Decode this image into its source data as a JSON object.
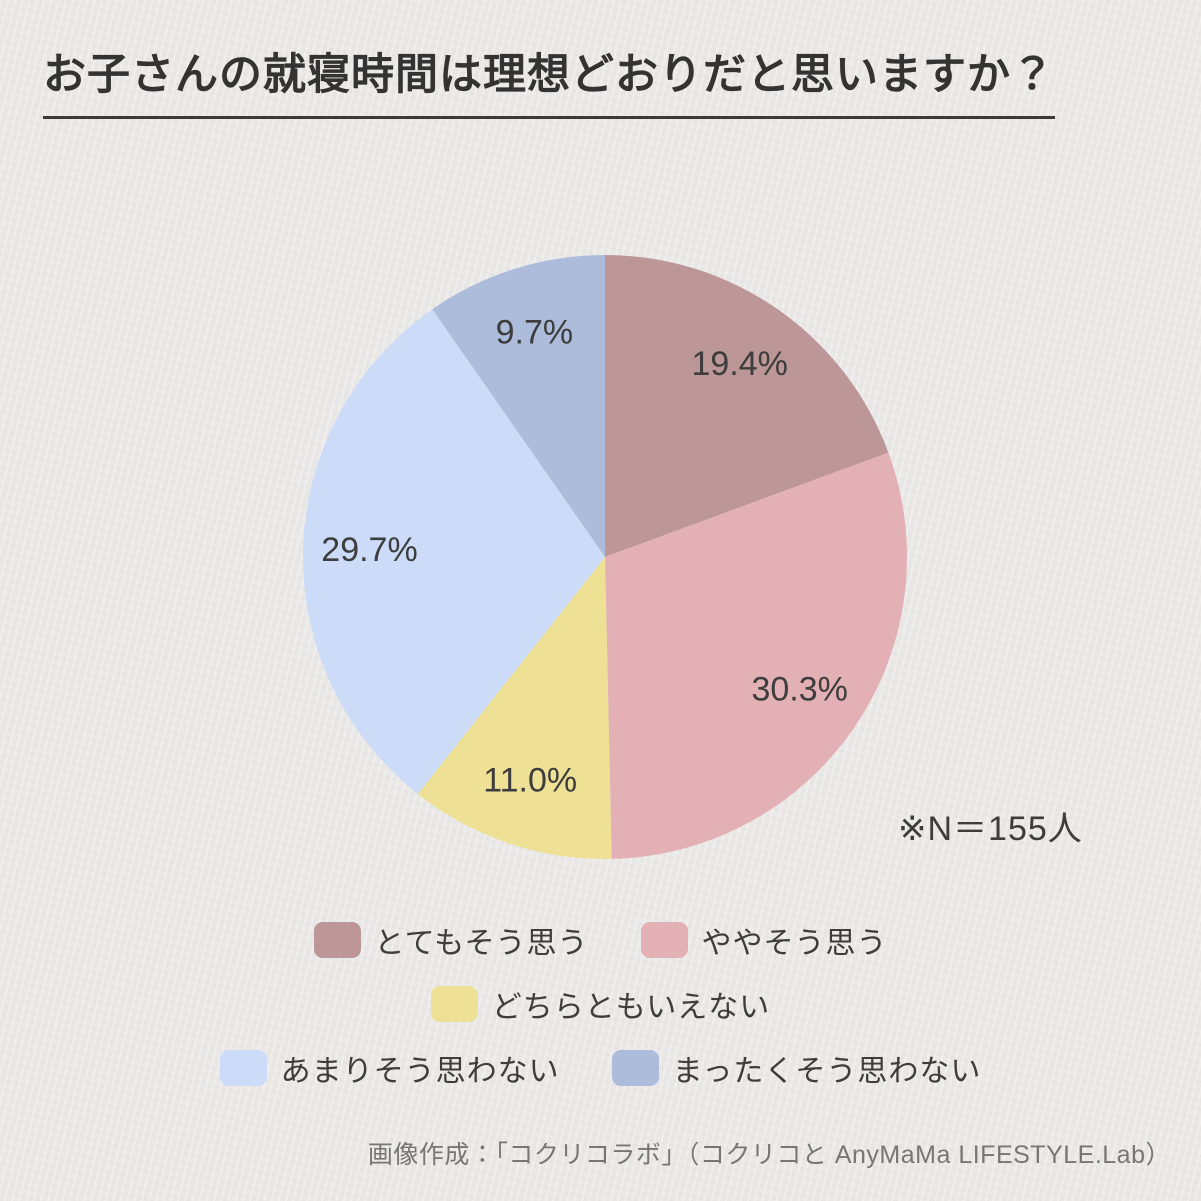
{
  "title": "お子さんの就寝時間は理想どおりだと思いますか？",
  "sample_note": "※N＝155人",
  "credit": "画像作成：「コクリコラボ」（コクリコと AnyMaMa LIFESTYLE.Lab）",
  "colors": {
    "background": "#e9e8e6",
    "title_text": "#333333",
    "label_text": "#3d3d3d",
    "credit_text": "#767676"
  },
  "chart_data": {
    "type": "pie",
    "title": "お子さんの就寝時間は理想どおりだと思いますか？",
    "unit": "%",
    "sample_size": 155,
    "start_angle_deg_from_12": 0,
    "direction": "clockwise",
    "legend_position": "bottom",
    "slices": [
      {
        "label": "とてもそう思う",
        "value": 19.4,
        "display": "19.4%",
        "color": "#bd9697"
      },
      {
        "label": "ややそう思う",
        "value": 30.3,
        "display": "30.3%",
        "color": "#e3b1b5"
      },
      {
        "label": "どちらともいえない",
        "value": 11.0,
        "display": "11.0%",
        "color": "#eee195"
      },
      {
        "label": "あまりそう思わない",
        "value": 29.7,
        "display": "29.7%",
        "color": "#ccdcf8"
      },
      {
        "label": "まったくそう思わない",
        "value": 9.7,
        "display": "9.7%",
        "color": "#aebcdc"
      }
    ],
    "legend_rows": [
      [
        0,
        1
      ],
      [
        2
      ],
      [
        3,
        4
      ]
    ]
  }
}
